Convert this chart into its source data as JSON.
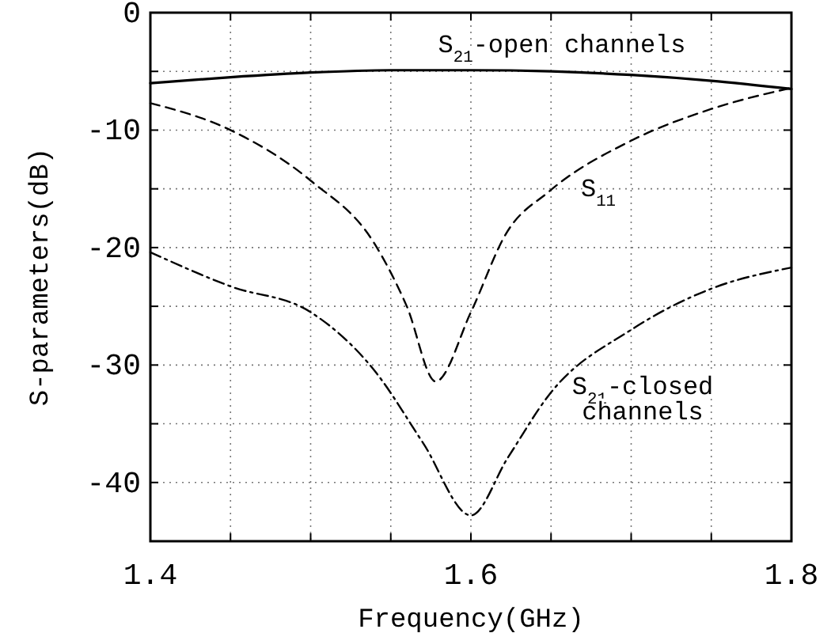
{
  "chart_data": {
    "type": "line",
    "xlabel": "Frequency(GHz)",
    "ylabel": "S-parameters(dB)",
    "xlim": [
      1.4,
      1.8
    ],
    "xticks": [
      1.4,
      {
        "value": 1.45,
        "label": null
      },
      {
        "value": 1.5,
        "label": null
      },
      {
        "value": 1.55,
        "label": null
      },
      1.6,
      {
        "value": 1.65,
        "label": null
      },
      {
        "value": 1.7,
        "label": null
      },
      {
        "value": 1.75,
        "label": null
      },
      1.8
    ],
    "ylim": [
      -45,
      0
    ],
    "yticks": [
      0,
      {
        "value": -5,
        "label": null
      },
      -10,
      {
        "value": -15,
        "label": null
      },
      -20,
      {
        "value": -25,
        "label": null
      },
      -30,
      {
        "value": -35,
        "label": null
      },
      -40
    ],
    "grid": true,
    "marker": "none",
    "series": [
      {
        "name": "S$_{21}$-open channels",
        "color": "#000000",
        "line_style": "solid",
        "x": [
          1.4,
          1.45,
          1.5,
          1.55,
          1.6,
          1.65,
          1.7,
          1.75,
          1.8
        ],
        "values": [
          -6,
          -5.5,
          -5.1,
          -4.9,
          -4.9,
          -5.0,
          -5.3,
          -5.8,
          -6.5
        ]
      },
      {
        "name": "S$_{11}$",
        "color": "#000000",
        "line_style": "dashed",
        "x": [
          1.4,
          1.45,
          1.5,
          1.54,
          1.56,
          1.578,
          1.6,
          1.622,
          1.649,
          1.7,
          1.75,
          1.8
        ],
        "values": [
          -7.7,
          -10,
          -14.3,
          -19.7,
          -25,
          -31.4,
          -25.5,
          -18.8,
          -15.2,
          -10.9,
          -8.2,
          -6.4
        ]
      },
      {
        "name": "S$_{21}$-closed\nchannels",
        "color": "#000000",
        "line_style": "dashdot",
        "x": [
          1.4,
          1.45,
          1.5,
          1.54,
          1.57,
          1.6,
          1.623,
          1.649,
          1.7,
          1.75,
          1.8
        ],
        "values": [
          -20.4,
          -23.3,
          -25.5,
          -30.5,
          -36.6,
          -42.8,
          -37.9,
          -32.5,
          -27,
          -23.5,
          -21.7
        ]
      }
    ]
  }
}
